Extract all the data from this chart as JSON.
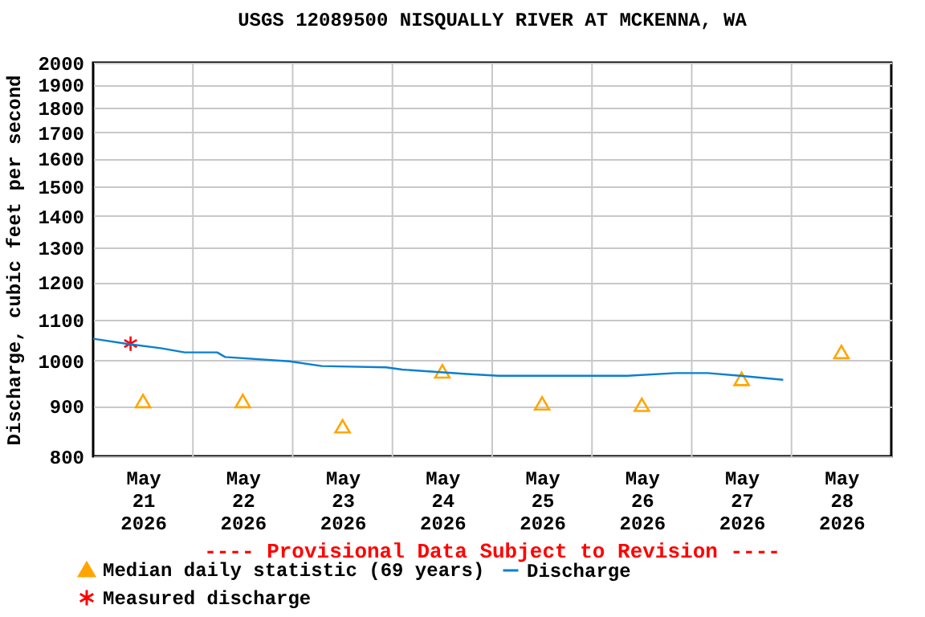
{
  "chart_data": {
    "type": "line",
    "title": "USGS 12089500 NISQUALLY RIVER AT MCKENNA, WA",
    "ylabel": "Discharge, cubic feet per second",
    "annotations": [
      "---- Provisional Data Subject to Revision ----"
    ],
    "log": "y",
    "grid": true,
    "legend": "bottom",
    "xlim": [
      "2026-05-21T00:00",
      "2026-05-29T00:00"
    ],
    "xticks": [
      {
        "value": "2026-05-21T12:00",
        "label": "May 21 2026"
      },
      {
        "value": "2026-05-22T00:00",
        "label": null
      },
      {
        "value": "2026-05-22T12:00",
        "label": "May 22 2026"
      },
      {
        "value": "2026-05-23T00:00",
        "label": null
      },
      {
        "value": "2026-05-23T12:00",
        "label": "May 23 2026"
      },
      {
        "value": "2026-05-24T00:00",
        "label": null
      },
      {
        "value": "2026-05-24T12:00",
        "label": "May 24 2026"
      },
      {
        "value": "2026-05-25T00:00",
        "label": null
      },
      {
        "value": "2026-05-25T12:00",
        "label": "May 25 2026"
      },
      {
        "value": "2026-05-26T00:00",
        "label": null
      },
      {
        "value": "2026-05-26T12:00",
        "label": "May 26 2026"
      },
      {
        "value": "2026-05-27T00:00",
        "label": null
      },
      {
        "value": "2026-05-27T12:00",
        "label": "May 27 2026"
      },
      {
        "value": "2026-05-28T00:00",
        "label": null
      },
      {
        "value": "2026-05-28T12:00",
        "label": "May 28 2026"
      }
    ],
    "ylim": [
      800,
      2000
    ],
    "yticks": [
      800,
      900,
      1000,
      1100,
      1200,
      1300,
      1400,
      1500,
      1600,
      1700,
      1800,
      1900,
      2000
    ],
    "series": [
      {
        "name": "Median daily statistic (69 years)",
        "type": "scatter",
        "marker": "triangle",
        "color": "#ffa500",
        "x": [
          "2026-05-21T12:00",
          "2026-05-22T12:00",
          "2026-05-23T12:00",
          "2026-05-24T12:00",
          "2026-05-25T12:00",
          "2026-05-26T12:00",
          "2026-05-27T12:00",
          "2026-05-28T12:00"
        ],
        "values": [
          910,
          910,
          858,
          975,
          905,
          902,
          958,
          1020
        ]
      },
      {
        "name": "Measured discharge",
        "type": "scatter",
        "marker": "cross",
        "color": "#ff0000",
        "x": [
          "2026-05-21T09:00"
        ],
        "values": [
          1040
        ]
      },
      {
        "name": "Discharge",
        "color": "#0a7fd2",
        "x": [
          "2026-05-21T00:00",
          "2026-05-21T08:30",
          "2026-05-21T16:15",
          "2026-05-21T22:00",
          "2026-05-22T05:50",
          "2026-05-22T07:45",
          "2026-05-22T23:15",
          "2026-05-23T07:00",
          "2026-05-23T22:30",
          "2026-05-24T02:20",
          "2026-05-24T17:50",
          "2026-05-25T01:30",
          "2026-05-26T08:30",
          "2026-05-26T20:10",
          "2026-05-27T03:50",
          "2026-05-27T11:40",
          "2026-05-27T22:00"
        ],
        "values": [
          1052,
          1039,
          1029,
          1019,
          1019,
          1008,
          998,
          987,
          984,
          979,
          969,
          965,
          965,
          971,
          971,
          965,
          956
        ]
      }
    ]
  }
}
